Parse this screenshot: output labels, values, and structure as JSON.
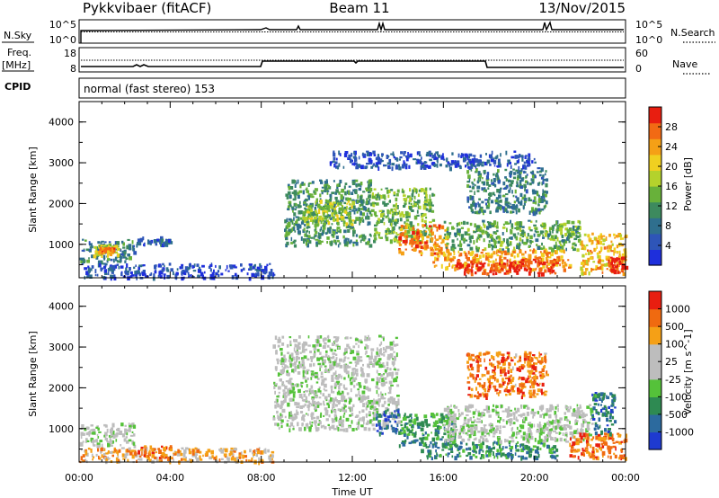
{
  "header": {
    "station": "Pykkvibaer (fitACF)",
    "beam": "Beam 11",
    "date": "13/Nov/2015"
  },
  "top_panel": {
    "left_label": "N.Sky",
    "left_ticks": [
      "10^5",
      "10^0"
    ],
    "right_label": "N.Search",
    "right_ticks": [
      "10^5",
      "10^0"
    ]
  },
  "freq_panel": {
    "left_label_1": "Freq.",
    "left_label_2": "[MHz]",
    "left_ticks": [
      "18",
      "8"
    ],
    "right_label": "Nave",
    "right_ticks": [
      "60",
      "0"
    ],
    "cpid_label": "CPID",
    "mode_text": "normal (fast stereo) 153"
  },
  "x_axis": {
    "label": "Time UT",
    "ticks": [
      "00:00",
      "04:00",
      "08:00",
      "12:00",
      "16:00",
      "20:00",
      "00:00"
    ]
  },
  "chart_data": [
    {
      "type": "heatmap",
      "title": "Power",
      "ylabel": "Slant Range [km]",
      "xlabel": "",
      "xlim": [
        0,
        24
      ],
      "ylim": [
        180,
        4500
      ],
      "yticks": [
        "1000",
        "2000",
        "3000",
        "4000"
      ],
      "colorbar": {
        "label": "Power [dB]",
        "ticks": [
          "4",
          "8",
          "12",
          "16",
          "20",
          "24",
          "28"
        ],
        "colors": [
          "#1e2fdc",
          "#2e55b8",
          "#2f6f8e",
          "#3d8a5e",
          "#68b13a",
          "#b4d22c",
          "#f0d020",
          "#f5a016",
          "#f26a14",
          "#e81e10"
        ]
      },
      "regions": [
        {
          "x": [
            0.0,
            2.4
          ],
          "y": [
            600,
            1150
          ],
          "v": 0.3
        },
        {
          "x": [
            0.6,
            1.8
          ],
          "y": [
            750,
            1000
          ],
          "v": 0.55
        },
        {
          "x": [
            0.8,
            1.5
          ],
          "y": [
            800,
            950
          ],
          "v": 0.8
        },
        {
          "x": [
            0.0,
            8.5
          ],
          "y": [
            200,
            550
          ],
          "v": 0.12
        },
        {
          "x": [
            2.5,
            4.0
          ],
          "y": [
            1000,
            1200
          ],
          "v": 0.2
        },
        {
          "x": [
            9.0,
            12.8
          ],
          "y": [
            1000,
            2600
          ],
          "v": 0.35
        },
        {
          "x": [
            9.8,
            12.0
          ],
          "y": [
            1500,
            2100
          ],
          "v": 0.55
        },
        {
          "x": [
            12.8,
            15.5
          ],
          "y": [
            1100,
            2400
          ],
          "v": 0.45
        },
        {
          "x": [
            14.0,
            16.2
          ],
          "y": [
            800,
            1500
          ],
          "v": 0.8
        },
        {
          "x": [
            15.5,
            21.5
          ],
          "y": [
            400,
            900
          ],
          "v": 0.75
        },
        {
          "x": [
            16.5,
            21.0
          ],
          "y": [
            300,
            650
          ],
          "v": 0.95
        },
        {
          "x": [
            16.0,
            22.0
          ],
          "y": [
            900,
            1600
          ],
          "v": 0.4
        },
        {
          "x": [
            17.0,
            20.5
          ],
          "y": [
            1800,
            2900
          ],
          "v": 0.3
        },
        {
          "x": [
            22.0,
            24.0
          ],
          "y": [
            300,
            1300
          ],
          "v": 0.7
        },
        {
          "x": [
            23.2,
            24.0
          ],
          "y": [
            300,
            700
          ],
          "v": 0.95
        },
        {
          "x": [
            11.0,
            20.0
          ],
          "y": [
            2900,
            3300
          ],
          "v": 0.15
        }
      ]
    },
    {
      "type": "heatmap",
      "title": "Velocity",
      "ylabel": "Slant Range [km]",
      "xlabel": "Time UT",
      "xlim": [
        0,
        24
      ],
      "ylim": [
        180,
        4500
      ],
      "yticks": [
        "1000",
        "2000",
        "3000",
        "4000"
      ],
      "colorbar": {
        "label": "Velocity [m s^-1]",
        "ticks": [
          "1000",
          "500",
          "100",
          "25",
          "-25",
          "-100",
          "-500",
          "-1000"
        ],
        "colors": [
          "#1e3ad0",
          "#2c6a9e",
          "#2e8a52",
          "#55c23a",
          "#bdbdbd",
          "#bdbdbd",
          "#f5a016",
          "#f06a10",
          "#e81e10"
        ]
      },
      "regions": [
        {
          "x": [
            0.0,
            2.4
          ],
          "y": [
            600,
            1150
          ],
          "v": 0.5
        },
        {
          "x": [
            0.0,
            8.5
          ],
          "y": [
            200,
            550
          ],
          "v": 0.7
        },
        {
          "x": [
            2.5,
            4.0
          ],
          "y": [
            300,
            600
          ],
          "v": 0.8
        },
        {
          "x": [
            8.5,
            14.0
          ],
          "y": [
            1000,
            3300
          ],
          "v": 0.5
        },
        {
          "x": [
            13.0,
            14.0
          ],
          "y": [
            900,
            1500
          ],
          "v": 0.1
        },
        {
          "x": [
            14.0,
            16.5
          ],
          "y": [
            600,
            1400
          ],
          "v": 0.3
        },
        {
          "x": [
            15.0,
            21.0
          ],
          "y": [
            300,
            700
          ],
          "v": 0.25
        },
        {
          "x": [
            16.0,
            22.5
          ],
          "y": [
            700,
            1600
          ],
          "v": 0.5
        },
        {
          "x": [
            17.0,
            20.5
          ],
          "y": [
            1800,
            2900
          ],
          "v": 0.8
        },
        {
          "x": [
            21.5,
            24.0
          ],
          "y": [
            300,
            900
          ],
          "v": 0.82
        },
        {
          "x": [
            22.5,
            23.5
          ],
          "y": [
            900,
            1900
          ],
          "v": 0.2
        }
      ]
    }
  ]
}
